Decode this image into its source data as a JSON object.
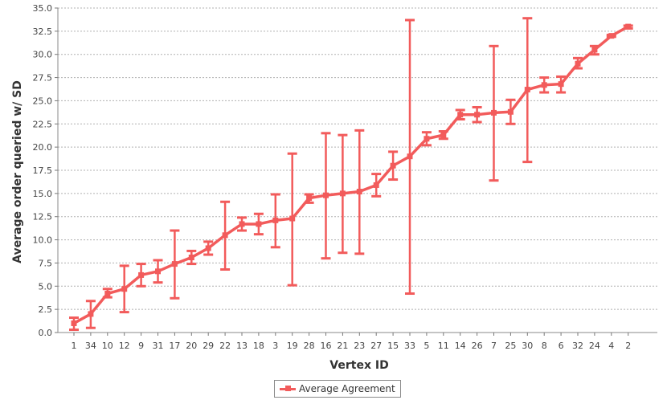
{
  "chart_data": {
    "type": "line",
    "title": "",
    "xlabel": "Vertex ID",
    "ylabel": "Average order queried w/ SD",
    "ylim": [
      0,
      35
    ],
    "yticks": [
      "0.0",
      "2.5",
      "5.0",
      "7.5",
      "10.0",
      "12.5",
      "15.0",
      "17.5",
      "20.0",
      "22.5",
      "25.0",
      "27.5",
      "30.0",
      "32.5",
      "35.0"
    ],
    "grid": true,
    "legend_position": "bottom",
    "categories": [
      "1",
      "34",
      "10",
      "12",
      "9",
      "31",
      "17",
      "20",
      "29",
      "22",
      "13",
      "18",
      "3",
      "19",
      "28",
      "16",
      "21",
      "23",
      "27",
      "15",
      "33",
      "5",
      "11",
      "14",
      "26",
      "7",
      "25",
      "30",
      "8",
      "6",
      "32",
      "24",
      "4",
      "2"
    ],
    "series": [
      {
        "name": "Average Agreement",
        "color": "#f25b5b",
        "values": [
          1.0,
          2.0,
          4.2,
          4.7,
          6.2,
          6.6,
          7.4,
          8.1,
          9.1,
          10.5,
          11.7,
          11.7,
          12.1,
          12.3,
          14.5,
          14.8,
          15.0,
          15.2,
          15.9,
          18.0,
          19.0,
          20.9,
          21.3,
          23.5,
          23.5,
          23.7,
          23.8,
          26.2,
          26.7,
          26.8,
          29.0,
          30.5,
          32.0,
          33.0
        ],
        "error_low": [
          0.3,
          0.5,
          3.8,
          2.2,
          5.0,
          5.4,
          3.7,
          7.4,
          8.4,
          6.8,
          11.0,
          10.6,
          9.2,
          5.1,
          14.0,
          8.0,
          8.6,
          8.5,
          14.7,
          16.5,
          4.2,
          20.2,
          20.9,
          23.0,
          22.7,
          16.4,
          22.5,
          18.4,
          25.9,
          25.9,
          28.5,
          30.0,
          31.9,
          32.8
        ],
        "error_high": [
          1.6,
          3.4,
          4.7,
          7.2,
          7.4,
          7.8,
          11.0,
          8.8,
          9.8,
          14.1,
          12.4,
          12.8,
          14.9,
          19.3,
          14.9,
          21.5,
          21.3,
          21.8,
          17.1,
          19.5,
          33.7,
          21.6,
          21.7,
          24.0,
          24.3,
          30.9,
          25.1,
          33.9,
          27.5,
          27.6,
          29.6,
          30.9,
          32.1,
          33.1
        ]
      }
    ]
  }
}
